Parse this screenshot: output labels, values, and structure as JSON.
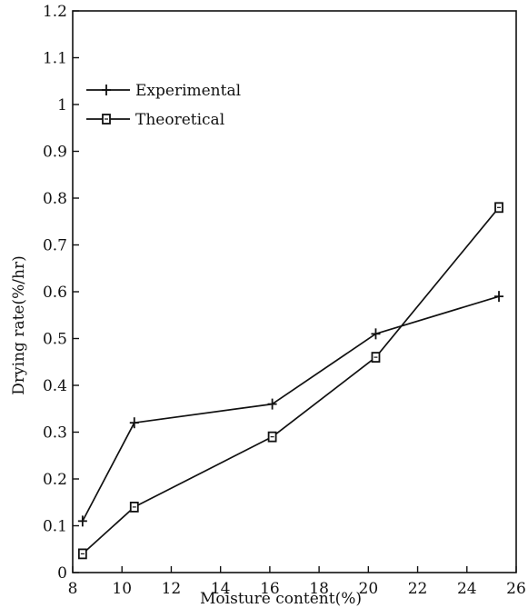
{
  "chart_data": {
    "type": "line",
    "title": "",
    "xlabel": "Moisture content(%)",
    "ylabel": "Drying rate(%/hr)",
    "xlim": [
      8,
      26
    ],
    "ylim": [
      0,
      1.2
    ],
    "x_ticks": [
      8,
      10,
      12,
      14,
      16,
      18,
      20,
      22,
      24,
      26
    ],
    "x_tick_labels": [
      "8",
      "10",
      "12",
      "14",
      "16",
      "18",
      "20",
      "22",
      "24",
      "26"
    ],
    "y_ticks": [
      0,
      0.1,
      0.2,
      0.3,
      0.4,
      0.5,
      0.6,
      0.7,
      0.8,
      0.9,
      1.0,
      1.1,
      1.2
    ],
    "y_tick_labels": [
      "0",
      "0.1",
      "0.2",
      "0.3",
      "0.4",
      "0.5",
      "0.6",
      "0.7",
      "0.8",
      "0.9",
      "1",
      "1.1",
      "1.2"
    ],
    "grid": false,
    "legend_position": "top-left",
    "series": [
      {
        "name": "Experimental",
        "marker": "plus",
        "x": [
          8.4,
          10.5,
          16.1,
          20.3,
          25.3
        ],
        "y": [
          0.11,
          0.32,
          0.36,
          0.51,
          0.59
        ]
      },
      {
        "name": "Theoretical",
        "marker": "square",
        "x": [
          8.4,
          10.5,
          16.1,
          20.3,
          25.3
        ],
        "y": [
          0.04,
          0.14,
          0.29,
          0.46,
          0.78
        ]
      }
    ],
    "colors": {
      "ink": "#111111",
      "background": "#ffffff"
    }
  }
}
